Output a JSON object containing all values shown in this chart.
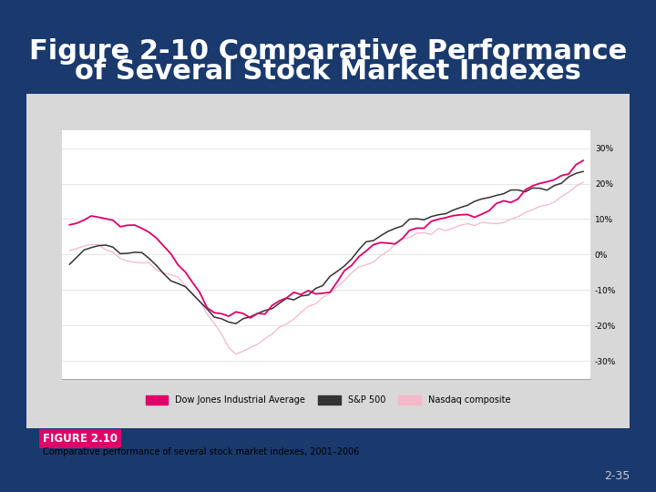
{
  "title_line1": "Figure 2-10 Comparative Performance",
  "title_line2": "of Several Stock Market Indexes",
  "background_color": "#1a3a6e",
  "chart_bg": "#ffffff",
  "title_color": "#ffffff",
  "title_fontsize": 22,
  "figure_label": "FIGURE 2.10",
  "figure_label_bg": "#e0006a",
  "figure_label_color": "#ffffff",
  "caption": "Comparative performance of several stock market indexes, 2001–2006",
  "caption_color": "#000000",
  "page_number": "2-35",
  "yticks": [
    -30,
    -20,
    -10,
    0,
    10,
    20,
    30
  ],
  "ytick_labels": [
    "-30%",
    "-20%",
    "-10%",
    "0%",
    "10%",
    "20%",
    "30%"
  ],
  "ylim": [
    -35,
    35
  ],
  "legend_entries": [
    "Dow Jones Industrial Average",
    "S&P 500",
    "Nasdaq composite"
  ],
  "dj_color": "#e0006a",
  "sp_color": "#333333",
  "nasdaq_color": "#f4b8c8"
}
